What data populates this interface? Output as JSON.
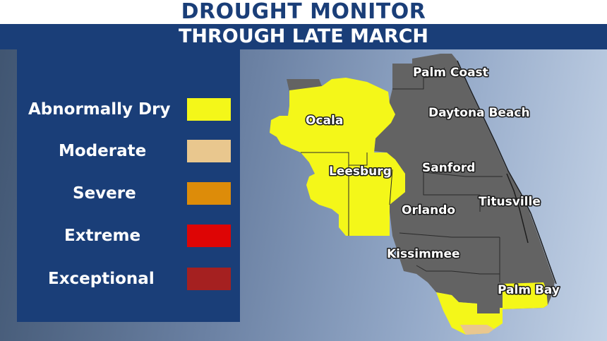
{
  "header": {
    "title": "DROUGHT MONITOR",
    "subtitle": "THROUGH LATE MARCH"
  },
  "legend": {
    "items": [
      {
        "label": "Abnormally Dry",
        "color": "#f4f719"
      },
      {
        "label": "Moderate",
        "color": "#e9c78e"
      },
      {
        "label": "Severe",
        "color": "#dd8c09"
      },
      {
        "label": "Extreme",
        "color": "#de0505"
      },
      {
        "label": "Exceptional",
        "color": "#a52020"
      }
    ]
  },
  "map": {
    "no_drought_color": "#636363",
    "cities": {
      "palm_coast": "Palm Coast",
      "daytona_beach": "Daytona Beach",
      "ocala": "Ocala",
      "leesburg": "Leesburg",
      "sanford": "Sanford",
      "orlando": "Orlando",
      "titusville": "Titusville",
      "kissimmee": "Kissimmee",
      "palm_bay": "Palm Bay"
    }
  }
}
